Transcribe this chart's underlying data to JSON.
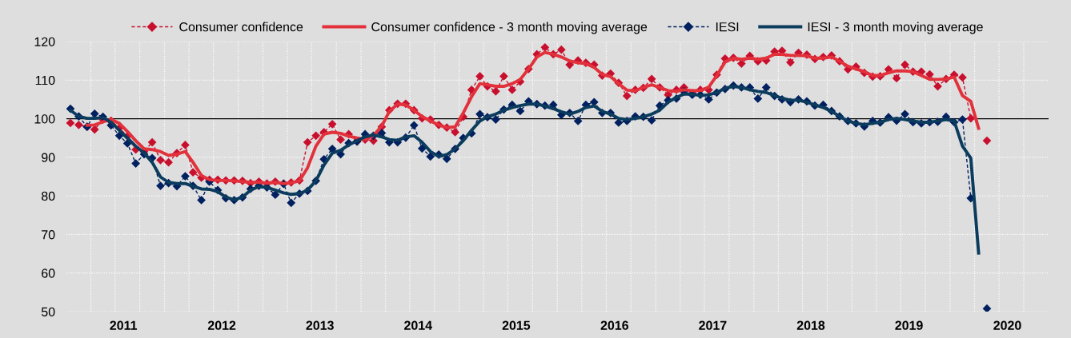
{
  "chart_data": {
    "type": "line",
    "x": [
      "2010-12",
      "2011-01",
      "2011-02",
      "2011-03",
      "2011-04",
      "2011-05",
      "2011-06",
      "2011-07",
      "2011-08",
      "2011-09",
      "2011-10",
      "2011-11",
      "2011-12",
      "2012-01",
      "2012-02",
      "2012-03",
      "2012-04",
      "2012-05",
      "2012-06",
      "2012-07",
      "2012-08",
      "2012-09",
      "2012-10",
      "2012-11",
      "2012-12",
      "2013-01",
      "2013-02",
      "2013-03",
      "2013-04",
      "2013-05",
      "2013-06",
      "2013-07",
      "2013-08",
      "2013-09",
      "2013-10",
      "2013-11",
      "2013-12",
      "2014-01",
      "2014-02",
      "2014-03",
      "2014-04",
      "2014-05",
      "2014-06",
      "2014-07",
      "2014-08",
      "2014-09",
      "2014-10",
      "2014-11",
      "2014-12",
      "2015-01",
      "2015-02",
      "2015-03",
      "2015-04",
      "2015-05",
      "2015-06",
      "2015-07",
      "2015-08",
      "2015-09",
      "2015-10",
      "2015-11",
      "2015-12",
      "2016-01",
      "2016-02",
      "2016-03",
      "2016-04",
      "2016-05",
      "2016-06",
      "2016-07",
      "2016-08",
      "2016-09",
      "2016-10",
      "2016-11",
      "2016-12",
      "2017-01",
      "2017-02",
      "2017-03",
      "2017-04",
      "2017-05",
      "2017-06",
      "2017-07",
      "2017-08",
      "2017-09",
      "2017-10",
      "2017-11",
      "2017-12",
      "2018-01",
      "2018-02",
      "2018-03",
      "2018-04",
      "2018-05",
      "2018-06",
      "2018-07",
      "2018-08",
      "2018-09",
      "2018-10",
      "2018-11",
      "2018-12",
      "2019-01",
      "2019-02",
      "2019-03",
      "2019-04",
      "2019-05",
      "2019-06",
      "2019-07",
      "2019-08",
      "2019-09",
      "2019-10",
      "2019-11",
      "2019-12",
      "2020-01",
      "2020-02",
      "2020-03",
      "2020-04"
    ],
    "series": [
      {
        "name": "Consumer confidence",
        "color": "#c8102e",
        "line_style": "dashed",
        "marker": "diamond",
        "values": [
          98.9,
          98.4,
          97.9,
          97.2,
          99.8,
          99.5,
          97.6,
          95.5,
          92.0,
          91.5,
          93.9,
          89.3,
          88.7,
          91.1,
          93.2,
          86.1,
          84.7,
          84.2,
          84.2,
          84.0,
          84.0,
          83.9,
          83.3,
          83.7,
          83.2,
          83.7,
          83.2,
          83.5,
          84.0,
          93.9,
          95.6,
          96.5,
          98.6,
          94.6,
          96.0,
          94.1,
          94.6,
          94.3,
          97.9,
          102.2,
          103.9,
          103.9,
          102.2,
          100.1,
          99.8,
          98.4,
          97.7,
          96.5,
          100.5,
          107.5,
          111.0,
          108.4,
          107.1,
          111.0,
          107.5,
          109.6,
          112.9,
          116.7,
          118.5,
          116.7,
          117.9,
          114.0,
          115.1,
          114.5,
          114.0,
          111.2,
          111.7,
          109.3,
          105.9,
          107.5,
          108.0,
          110.3,
          108.1,
          106.2,
          107.5,
          108.1,
          106.6,
          107.5,
          107.5,
          111.4,
          115.6,
          115.8,
          114.3,
          116.3,
          114.9,
          115.1,
          117.4,
          117.6,
          114.6,
          117.1,
          116.6,
          115.5,
          116.0,
          116.4,
          114.9,
          112.8,
          113.5,
          111.9,
          110.9,
          111.0,
          112.8,
          110.5,
          114.0,
          112.2,
          112.2,
          111.5,
          108.4,
          110.3,
          111.4,
          110.7,
          100.1,
          null,
          94.3
        ]
      },
      {
        "name": "Consumer confidence - 3 month moving average",
        "color": "#e2313b",
        "line_style": "solid",
        "marker": "none",
        "values": [
          null,
          null,
          98.3,
          98.4,
          99.2,
          99.8,
          98.8,
          96.7,
          94.3,
          92.2,
          92.0,
          91.5,
          90.5,
          90.8,
          91.5,
          88.7,
          85.3,
          84.2,
          84.0,
          84.0,
          83.9,
          83.7,
          83.5,
          83.5,
          83.3,
          83.5,
          83.2,
          83.4,
          83.9,
          87.3,
          92.9,
          96.0,
          96.5,
          96.2,
          95.5,
          95.0,
          94.6,
          95.6,
          98.1,
          101.9,
          103.8,
          103.6,
          102.2,
          100.6,
          99.4,
          98.4,
          97.7,
          97.9,
          101.5,
          105.7,
          109.1,
          108.8,
          108.4,
          108.4,
          109.1,
          110.2,
          112.9,
          116.0,
          117.2,
          116.7,
          116.0,
          115.0,
          114.5,
          114.3,
          113.3,
          111.5,
          110.9,
          109.1,
          107.4,
          107.3,
          108.1,
          108.8,
          108.1,
          107.3,
          107.1,
          107.5,
          107.3,
          107.3,
          108.2,
          111.2,
          114.7,
          115.7,
          115.4,
          115.7,
          115.4,
          115.7,
          116.7,
          116.7,
          116.4,
          116.4,
          116.3,
          115.7,
          115.7,
          116.0,
          114.9,
          113.6,
          112.9,
          112.2,
          111.2,
          111.2,
          111.9,
          112.4,
          112.4,
          112.2,
          111.2,
          110.2,
          110.2,
          110.3,
          110.8,
          106.0,
          104.5,
          97.5,
          null
        ]
      },
      {
        "name": "IESI",
        "color": "#002060",
        "line_style": "dashed",
        "marker": "diamond",
        "values": [
          102.6,
          100.6,
          97.9,
          101.3,
          100.5,
          98.3,
          95.6,
          93.6,
          88.4,
          90.8,
          89.8,
          82.6,
          83.3,
          82.5,
          85.1,
          82.6,
          78.9,
          83.7,
          81.5,
          79.4,
          78.9,
          79.6,
          81.8,
          82.6,
          82.2,
          80.3,
          83.1,
          78.2,
          80.6,
          81.3,
          83.9,
          89.5,
          92.2,
          90.8,
          93.7,
          94.1,
          96.0,
          95.6,
          96.3,
          93.9,
          93.9,
          95.1,
          98.3,
          92.3,
          90.2,
          90.7,
          89.6,
          92.2,
          95.0,
          96.2,
          101.2,
          100.4,
          99.8,
          102.4,
          103.6,
          102.0,
          104.5,
          103.8,
          103.4,
          103.6,
          101.0,
          101.5,
          99.4,
          103.6,
          104.3,
          101.5,
          101.5,
          99.0,
          99.4,
          100.6,
          100.5,
          99.6,
          103.4,
          104.8,
          105.2,
          107.1,
          106.2,
          106.2,
          105.0,
          106.8,
          107.7,
          108.6,
          108.1,
          108.1,
          105.2,
          108.1,
          105.9,
          105.0,
          104.3,
          105.0,
          104.5,
          103.4,
          103.6,
          102.0,
          100.6,
          99.4,
          98.8,
          98.0,
          99.4,
          99.0,
          100.4,
          99.5,
          101.2,
          99.1,
          98.8,
          99.1,
          99.2,
          100.5,
          99.1,
          99.8,
          79.4,
          null,
          50.8
        ]
      },
      {
        "name": "IESI - 3 month moving average",
        "color": "#0b3c5d",
        "line_style": "solid",
        "marker": "none",
        "values": [
          102.2,
          100.6,
          100.1,
          100.1,
          100.3,
          99.1,
          97.0,
          95.0,
          92.9,
          91.1,
          88.7,
          84.9,
          83.5,
          83.2,
          83.2,
          82.5,
          81.8,
          81.7,
          81.1,
          79.7,
          79.0,
          79.7,
          81.5,
          82.4,
          82.2,
          81.5,
          80.8,
          80.4,
          80.6,
          81.5,
          83.9,
          88.0,
          91.1,
          91.8,
          93.2,
          94.3,
          95.3,
          95.8,
          95.3,
          94.6,
          94.4,
          95.3,
          95.6,
          93.9,
          91.5,
          90.2,
          90.7,
          92.2,
          94.3,
          97.0,
          99.4,
          100.5,
          101.2,
          102.2,
          102.9,
          103.4,
          103.8,
          103.8,
          103.3,
          102.6,
          101.8,
          101.2,
          101.9,
          102.9,
          103.3,
          101.9,
          101.2,
          100.1,
          99.8,
          100.1,
          100.5,
          101.2,
          102.2,
          104.3,
          105.5,
          106.4,
          106.4,
          106.0,
          106.2,
          106.8,
          107.9,
          108.4,
          108.1,
          107.5,
          107.1,
          106.8,
          106.0,
          105.3,
          104.8,
          104.8,
          104.3,
          103.6,
          102.9,
          101.9,
          100.6,
          99.4,
          98.8,
          98.5,
          98.8,
          99.1,
          99.8,
          100.1,
          99.8,
          99.4,
          99.1,
          99.1,
          99.4,
          99.8,
          99.4,
          92.9,
          89.8,
          65.2,
          null
        ]
      }
    ],
    "xlim": [
      "2010-11-16",
      "2020-11-16"
    ],
    "xticks": [
      {
        "value": "2011-06-16",
        "label": "2011"
      },
      {
        "value": "2012-06-16",
        "label": "2012"
      },
      {
        "value": "2013-06-16",
        "label": "2013"
      },
      {
        "value": "2014-06-16",
        "label": "2014"
      },
      {
        "value": "2015-06-16",
        "label": "2015"
      },
      {
        "value": "2016-06-16",
        "label": "2016"
      },
      {
        "value": "2017-06-16",
        "label": "2017"
      },
      {
        "value": "2018-06-16",
        "label": "2018"
      },
      {
        "value": "2019-06-16",
        "label": "2019"
      },
      {
        "value": "2020-06-16",
        "label": "2020"
      },
      {
        "value": "2011-02-15",
        "label": null
      },
      {
        "value": "2011-05-16",
        "label": null
      },
      {
        "value": "2011-08-16",
        "label": null
      },
      {
        "value": "2011-11-16",
        "label": null
      },
      {
        "value": "2012-02-15",
        "label": null
      },
      {
        "value": "2012-05-16",
        "label": null
      },
      {
        "value": "2012-08-16",
        "label": null
      },
      {
        "value": "2012-11-16",
        "label": null
      },
      {
        "value": "2013-02-15",
        "label": null
      },
      {
        "value": "2013-05-16",
        "label": null
      },
      {
        "value": "2013-08-16",
        "label": null
      },
      {
        "value": "2013-11-16",
        "label": null
      },
      {
        "value": "2014-02-15",
        "label": null
      },
      {
        "value": "2014-05-16",
        "label": null
      },
      {
        "value": "2014-08-16",
        "label": null
      },
      {
        "value": "2014-11-16",
        "label": null
      },
      {
        "value": "2015-02-15",
        "label": null
      },
      {
        "value": "2015-05-16",
        "label": null
      },
      {
        "value": "2015-08-16",
        "label": null
      },
      {
        "value": "2015-11-16",
        "label": null
      },
      {
        "value": "2016-02-15",
        "label": null
      },
      {
        "value": "2016-05-16",
        "label": null
      },
      {
        "value": "2016-08-16",
        "label": null
      },
      {
        "value": "2016-11-16",
        "label": null
      },
      {
        "value": "2017-02-15",
        "label": null
      },
      {
        "value": "2017-05-16",
        "label": null
      },
      {
        "value": "2017-08-16",
        "label": null
      },
      {
        "value": "2017-11-16",
        "label": null
      },
      {
        "value": "2018-02-15",
        "label": null
      },
      {
        "value": "2018-05-16",
        "label": null
      },
      {
        "value": "2018-08-16",
        "label": null
      },
      {
        "value": "2018-11-16",
        "label": null
      },
      {
        "value": "2019-02-15",
        "label": null
      },
      {
        "value": "2019-05-16",
        "label": null
      },
      {
        "value": "2019-08-16",
        "label": null
      },
      {
        "value": "2019-11-16",
        "label": null
      },
      {
        "value": "2020-02-15",
        "label": null
      },
      {
        "value": "2020-05-16",
        "label": null
      },
      {
        "value": "2020-08-16",
        "label": null
      }
    ],
    "ylim": [
      50,
      120
    ],
    "yticks": [
      50,
      60,
      70,
      80,
      90,
      100,
      110,
      120
    ],
    "ref_lines": [
      {
        "axis": "y",
        "value": 100,
        "color": "#000000",
        "line_style": "solid"
      }
    ],
    "grid": true,
    "legend": "top"
  }
}
